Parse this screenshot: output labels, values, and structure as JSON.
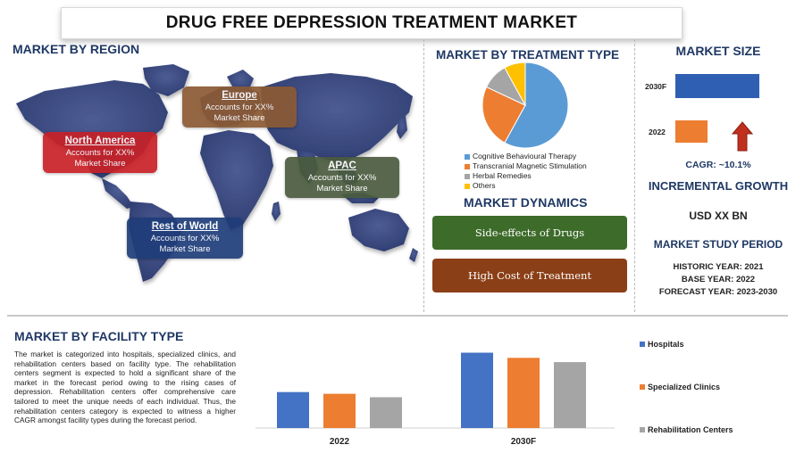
{
  "title": "DRUG FREE DEPRESSION TREATMENT MARKET",
  "region": {
    "heading": "MARKET BY REGION",
    "boxes": [
      {
        "name": "Europe",
        "desc1": "Accounts for XX%",
        "desc2": "Market Share",
        "color": "#8b5a34"
      },
      {
        "name": "North America",
        "desc1": "Accounts for XX%",
        "desc2": "Market Share",
        "color": "#c82127"
      },
      {
        "name": "APAC",
        "desc1": "Accounts for XX%",
        "desc2": "Market Share",
        "color": "#4a5b3e"
      },
      {
        "name": "Rest of World",
        "desc1": "Accounts for XX%",
        "desc2": "Market Share",
        "color": "#1f3d7a"
      }
    ]
  },
  "treatment": {
    "heading": "MARKET BY TREATMENT TYPE",
    "legend": [
      {
        "label": "Cognitive Behavioural Therapy",
        "color": "#5b9bd5"
      },
      {
        "label": "Transcranial Magnetic Stimulation",
        "color": "#ed7d31"
      },
      {
        "label": "Herbal Remedies",
        "color": "#a5a5a5"
      },
      {
        "label": "Others",
        "color": "#ffc000"
      }
    ],
    "slices": [
      58,
      24,
      10,
      8
    ]
  },
  "dynamics": {
    "heading": "MARKET DYNAMICS",
    "items": [
      {
        "label": "Side-effects of Drugs",
        "color": "#3d6b2a"
      },
      {
        "label": "High Cost of Treatment",
        "color": "#8b3f16"
      }
    ]
  },
  "size": {
    "heading": "MARKET SIZE",
    "year_a": "2030F",
    "year_b": "2022",
    "bar_a_color": "#2f5fb3",
    "bar_b_color": "#ed7d31",
    "arrow_color": "#c0301e",
    "cagr": "CAGR:  ~10.1%",
    "incremental_heading": "INCREMENTAL GROWTH",
    "incremental_value": "USD XX BN",
    "study_heading": "MARKET STUDY PERIOD",
    "historic": "HISTORIC YEAR: 2021",
    "base": "BASE YEAR: 2022",
    "forecast": "FORECAST YEAR: 2023-2030"
  },
  "facility": {
    "heading": "MARKET BY FACILITY TYPE",
    "text": "The market is categorized into hospitals, specialized clinics, and rehabilitation centers based on facility type. The rehabilitation centers segment is expected to hold a significant share of the market in the forecast period owing to the rising cases of depression. Rehabilitation centers offer comprehensive care tailored to meet the unique needs of each individual. Thus, the rehabilitation centers category is expected to witness a higher CAGR amongst facility types during the forecast period."
  },
  "chart_data": {
    "type": "bar",
    "categories": [
      "2022",
      "2030F"
    ],
    "series": [
      {
        "name": "Hospitals",
        "color": "#4472c4",
        "values": [
          42,
          88
        ]
      },
      {
        "name": "Specialized Clinics",
        "color": "#ed7d31",
        "values": [
          40,
          82
        ]
      },
      {
        "name": "Rehabilitation Centers",
        "color": "#a5a5a5",
        "values": [
          36,
          77
        ]
      }
    ],
    "ylim": [
      0,
      100
    ]
  }
}
